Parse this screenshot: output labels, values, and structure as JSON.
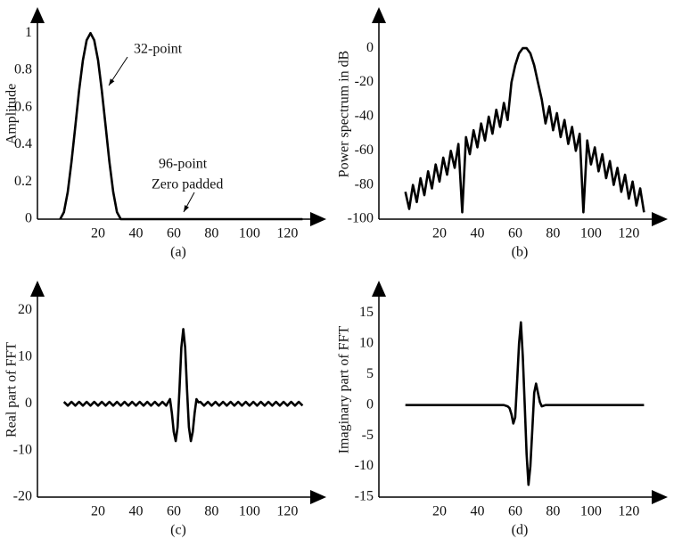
{
  "chart_data": [
    {
      "type": "line",
      "ylabel": "Amplitude",
      "caption": "(a)",
      "annotations": [
        "32-point",
        "96-point",
        "Zero padded"
      ],
      "color": "#000000",
      "x": [
        0,
        2,
        4,
        6,
        8,
        10,
        12,
        14,
        16,
        18,
        20,
        22,
        24,
        26,
        28,
        30,
        32,
        40,
        60,
        80,
        100,
        120,
        128
      ],
      "values": [
        0,
        0.038,
        0.146,
        0.309,
        0.5,
        0.691,
        0.854,
        0.962,
        1,
        0.962,
        0.854,
        0.691,
        0.5,
        0.309,
        0.146,
        0.038,
        0,
        0,
        0,
        0,
        0,
        0,
        0
      ],
      "xlim": [
        -12,
        133
      ],
      "xticks": [
        20,
        40,
        60,
        80,
        100,
        120
      ],
      "ylim": [
        0,
        1.13
      ],
      "yticks": [
        0,
        0.2,
        0.4,
        0.6,
        0.8,
        1
      ]
    },
    {
      "type": "line",
      "ylabel": "Power spectrum in dB",
      "caption": "(b)",
      "color": "#000000",
      "x": [
        2,
        4,
        6,
        8,
        10,
        12,
        14,
        16,
        18,
        20,
        22,
        24,
        26,
        28,
        30,
        32,
        34,
        36,
        38,
        40,
        42,
        44,
        46,
        48,
        50,
        52,
        54,
        56,
        58,
        60,
        62,
        64,
        66,
        68,
        70,
        72,
        74,
        76,
        78,
        80,
        82,
        84,
        86,
        88,
        90,
        92,
        94,
        96,
        98,
        100,
        102,
        104,
        106,
        108,
        110,
        112,
        114,
        116,
        118,
        120,
        122,
        124,
        126,
        128
      ],
      "values": [
        -84,
        -94,
        -80,
        -90,
        -76,
        -86,
        -72,
        -82,
        -68,
        -78,
        -64,
        -74,
        -60,
        -70,
        -56,
        -96,
        -52,
        -62,
        -48,
        -58,
        -44,
        -54,
        -40,
        -50,
        -36,
        -46,
        -32,
        -42,
        -20,
        -10,
        -3,
        0,
        0,
        -3,
        -10,
        -20,
        -30,
        -44,
        -34,
        -48,
        -38,
        -52,
        -42,
        -56,
        -46,
        -60,
        -50,
        -96,
        -54,
        -68,
        -58,
        -72,
        -62,
        -76,
        -66,
        -80,
        -70,
        -84,
        -74,
        -88,
        -78,
        -92,
        -82,
        -96
      ],
      "xlim": [
        -12,
        133
      ],
      "xticks": [
        20,
        40,
        60,
        80,
        100,
        120
      ],
      "ylim": [
        -100,
        23
      ],
      "yticks": [
        0,
        -20,
        -40,
        -60,
        -80,
        -100
      ]
    },
    {
      "type": "line",
      "ylabel": "Real part of FFT",
      "caption": "(c)",
      "color": "#000000",
      "x": [
        2,
        4,
        6,
        8,
        10,
        12,
        14,
        16,
        18,
        20,
        22,
        24,
        26,
        28,
        30,
        32,
        34,
        36,
        38,
        40,
        42,
        44,
        46,
        48,
        50,
        52,
        54,
        56,
        57,
        58,
        59,
        60,
        61,
        62,
        63,
        64,
        65,
        66,
        67,
        68,
        69,
        70,
        71,
        72,
        73,
        74,
        76,
        78,
        80,
        82,
        84,
        86,
        88,
        90,
        92,
        94,
        96,
        98,
        100,
        102,
        104,
        106,
        108,
        110,
        112,
        114,
        116,
        118,
        120,
        122,
        124,
        126,
        128
      ],
      "values": [
        0.4,
        -0.4,
        0.4,
        -0.4,
        0.4,
        -0.4,
        0.4,
        -0.4,
        0.4,
        -0.4,
        0.4,
        -0.4,
        0.4,
        -0.4,
        0.4,
        -0.4,
        0.4,
        -0.4,
        0.4,
        -0.4,
        0.4,
        -0.4,
        0.4,
        -0.4,
        0.4,
        -0.4,
        0.4,
        -0.4,
        0.3,
        1,
        -2,
        -6,
        -8,
        -5,
        3,
        12,
        16,
        12,
        3,
        -5,
        -8,
        -6,
        -2,
        1,
        0.3,
        0.4,
        -0.4,
        0.4,
        -0.4,
        0.4,
        -0.4,
        0.4,
        -0.4,
        0.4,
        -0.4,
        0.4,
        -0.4,
        0.4,
        -0.4,
        0.4,
        -0.4,
        0.4,
        -0.4,
        0.4,
        -0.4,
        0.4,
        -0.4,
        0.4,
        -0.4,
        0.4,
        -0.4,
        0.4,
        -0.4
      ],
      "xlim": [
        -12,
        133
      ],
      "xticks": [
        20,
        40,
        60,
        80,
        100,
        120
      ],
      "ylim": [
        -20,
        26
      ],
      "yticks": [
        20,
        10,
        0,
        -10,
        -20
      ]
    },
    {
      "type": "line",
      "ylabel": "Imaginary part of FFT",
      "caption": "(d)",
      "color": "#000000",
      "x": [
        2,
        4,
        6,
        8,
        10,
        12,
        14,
        16,
        18,
        20,
        22,
        24,
        26,
        28,
        30,
        32,
        34,
        36,
        38,
        40,
        42,
        44,
        46,
        48,
        50,
        52,
        54,
        56,
        57,
        58,
        59,
        60,
        61,
        62,
        63,
        64,
        65,
        66,
        67,
        68,
        69,
        70,
        71,
        72,
        73,
        74,
        76,
        78,
        80,
        82,
        84,
        86,
        88,
        90,
        92,
        94,
        96,
        98,
        100,
        102,
        104,
        106,
        108,
        110,
        112,
        114,
        116,
        118,
        120,
        122,
        124,
        126,
        128
      ],
      "values": [
        0,
        0,
        0,
        0,
        0,
        0,
        0,
        0,
        0,
        0,
        0,
        0,
        0,
        0,
        0,
        0,
        0,
        0,
        0,
        0,
        0,
        0,
        0,
        0,
        0,
        0,
        0,
        -0.2,
        -0.5,
        -1.5,
        -3,
        -2,
        4,
        10,
        13.5,
        8,
        0,
        -8,
        -13,
        -10,
        -4,
        2,
        3.5,
        2,
        0.5,
        -0.2,
        0,
        0,
        0,
        0,
        0,
        0,
        0,
        0,
        0,
        0,
        0,
        0,
        0,
        0,
        0,
        0,
        0,
        0,
        0,
        0,
        0,
        0,
        0,
        0,
        0,
        0,
        0
      ],
      "xlim": [
        -12,
        133
      ],
      "xticks": [
        20,
        40,
        60,
        80,
        100,
        120
      ],
      "ylim": [
        -15,
        20
      ],
      "yticks": [
        15,
        10,
        5,
        0,
        -5,
        -10,
        -15
      ]
    }
  ]
}
